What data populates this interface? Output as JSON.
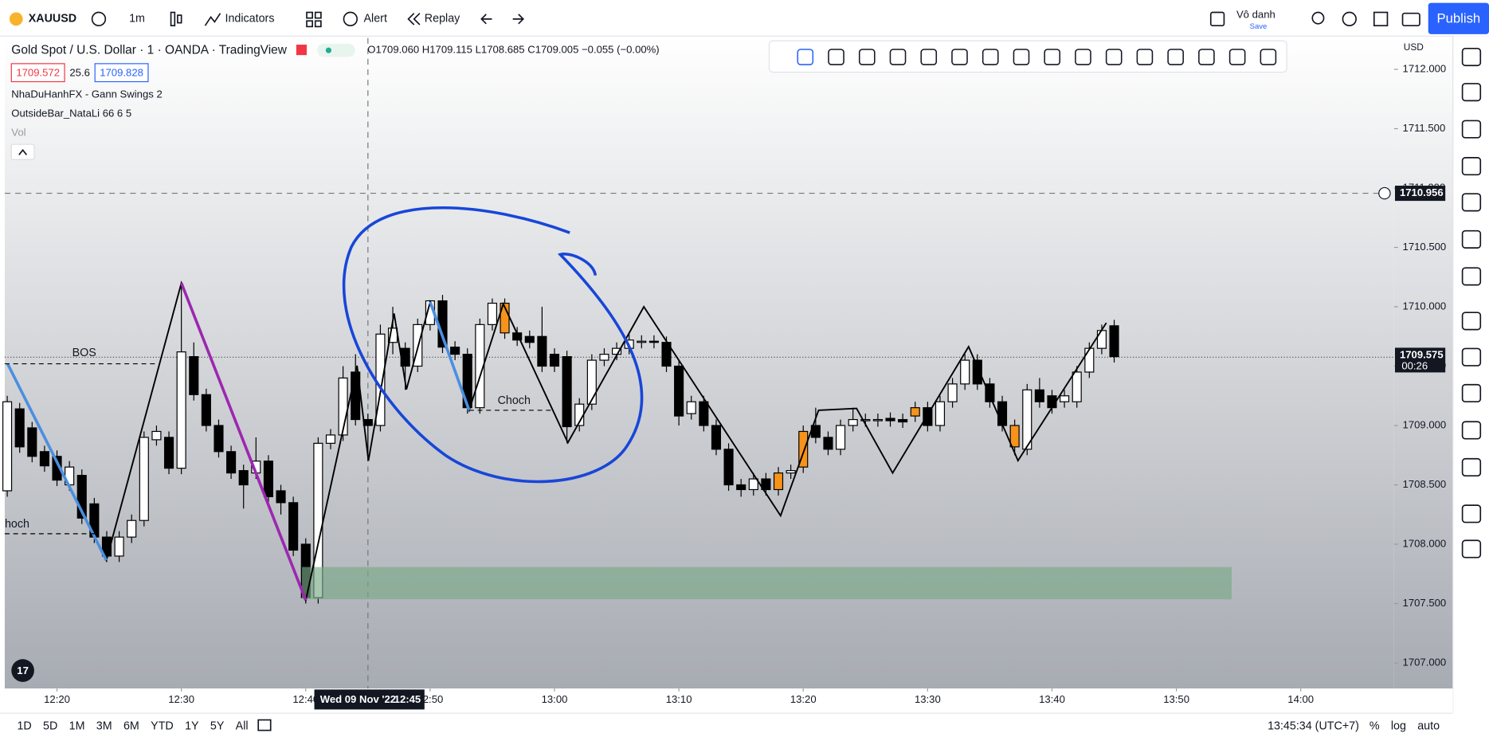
{
  "top_bar": {
    "symbol": "XAUUSD",
    "interval": "1m",
    "indicators": "Indicators",
    "alert": "Alert",
    "replay": "Replay",
    "layout_name": "Vô danh",
    "save": "Save",
    "publish": "Publish"
  },
  "legend": {
    "title": "Gold Spot / U.S. Dollar · 1 · OANDA · TradingView",
    "ohlc": "O1709.060 H1709.115 L1708.685 C1709.005 −0.055 (−0.00%)",
    "bid": "1709.572",
    "spread": "25.6",
    "ask": "1709.828",
    "indicators": [
      "NhaDuHanhFX - Gann Swings 2",
      "OutsideBar_NataLi 66 6 5",
      "Vol"
    ]
  },
  "chart_data": {
    "type": "candlestick",
    "currency": "USD",
    "x": [
      736,
      737,
      738,
      739,
      740,
      741,
      742,
      743,
      744,
      745,
      746,
      747,
      748,
      749,
      750,
      751,
      752,
      753,
      754,
      755,
      756,
      757,
      758,
      759,
      760,
      761,
      762,
      763,
      764,
      765,
      766,
      767,
      768,
      769,
      770,
      771,
      772,
      773,
      774,
      775,
      776,
      777,
      778,
      779,
      780,
      781,
      782,
      783,
      784,
      785,
      786,
      787,
      788,
      789,
      790,
      791,
      792,
      793,
      794,
      795,
      796,
      797,
      798,
      799,
      800,
      801,
      802,
      803,
      804,
      805,
      806,
      807,
      808,
      809,
      810,
      811,
      812,
      813,
      814,
      815,
      816,
      817,
      818,
      819,
      820,
      821,
      822,
      823,
      824,
      825
    ],
    "open": [
      1708.45,
      1709.14,
      1708.98,
      1708.78,
      1708.74,
      1708.5,
      1708.58,
      1708.34,
      1708.06,
      1707.9,
      1708.06,
      1708.2,
      1708.88,
      1708.9,
      1708.64,
      1709.58,
      1709.26,
      1709.0,
      1708.78,
      1708.62,
      1708.6,
      1708.7,
      1708.45,
      1708.35,
      1708.0,
      1707.55,
      1708.85,
      1708.92,
      1709.45,
      1709.05,
      1709.0,
      1709.7,
      1709.65,
      1709.5,
      1709.85,
      1710.05,
      1709.66,
      1709.6,
      1709.15,
      1709.85,
      1710.03,
      1709.78,
      1709.75,
      1709.75,
      1709.6,
      1709.58,
      1709.0,
      1709.18,
      1709.55,
      1709.6,
      1709.65,
      1709.7,
      1709.71,
      1709.7,
      1709.5,
      1709.1,
      1709.2,
      1709.0,
      1708.8,
      1708.5,
      1708.46,
      1708.55,
      1708.46,
      1708.6,
      1708.65,
      1709.0,
      1708.9,
      1708.8,
      1709.0,
      1709.04,
      1709.04,
      1709.06,
      1709.05,
      1709.08,
      1709.15,
      1709.0,
      1709.2,
      1709.35,
      1709.55,
      1709.35,
      1709.2,
      1709.0,
      1708.8,
      1709.3,
      1709.25,
      1709.2,
      1709.2,
      1709.45,
      1709.65,
      1709.84
    ],
    "high": [
      1709.25,
      1709.19,
      1709.03,
      1708.83,
      1708.79,
      1708.7,
      1708.63,
      1708.39,
      1708.11,
      1708.11,
      1708.25,
      1708.95,
      1709.0,
      1708.95,
      1710.2,
      1709.7,
      1709.31,
      1709.05,
      1708.83,
      1708.67,
      1708.9,
      1708.75,
      1708.5,
      1708.4,
      1708.05,
      1708.9,
      1708.97,
      1709.5,
      1709.6,
      1709.1,
      1709.85,
      1710.0,
      1709.7,
      1709.9,
      1710.05,
      1710.1,
      1709.71,
      1709.65,
      1709.9,
      1710.07,
      1710.07,
      1709.83,
      1709.8,
      1710.0,
      1709.65,
      1709.63,
      1709.23,
      1709.6,
      1709.65,
      1709.7,
      1709.77,
      1709.76,
      1709.76,
      1709.75,
      1709.55,
      1709.25,
      1709.25,
      1709.05,
      1708.85,
      1708.55,
      1708.6,
      1708.6,
      1708.65,
      1708.67,
      1709.0,
      1709.15,
      1708.95,
      1709.05,
      1709.15,
      1709.1,
      1709.1,
      1709.11,
      1709.1,
      1709.2,
      1709.2,
      1709.25,
      1709.4,
      1709.6,
      1709.6,
      1709.4,
      1709.25,
      1709.05,
      1709.35,
      1709.4,
      1709.3,
      1709.3,
      1709.5,
      1709.7,
      1709.85,
      1709.89
    ],
    "low": [
      1708.4,
      1708.77,
      1708.69,
      1708.61,
      1708.49,
      1708.45,
      1708.17,
      1708.01,
      1707.85,
      1707.85,
      1708.01,
      1708.15,
      1708.83,
      1708.59,
      1708.59,
      1709.21,
      1708.95,
      1708.73,
      1708.55,
      1708.3,
      1708.55,
      1708.35,
      1708.25,
      1707.9,
      1707.5,
      1707.5,
      1708.8,
      1708.87,
      1709.0,
      1708.7,
      1708.95,
      1709.6,
      1709.3,
      1709.45,
      1709.8,
      1709.61,
      1709.55,
      1709.1,
      1709.1,
      1709.8,
      1709.73,
      1709.67,
      1709.65,
      1709.45,
      1709.45,
      1708.85,
      1708.95,
      1709.13,
      1709.5,
      1709.55,
      1709.6,
      1709.65,
      1709.65,
      1709.45,
      1709.0,
      1709.05,
      1708.95,
      1708.75,
      1708.45,
      1708.4,
      1708.41,
      1708.41,
      1708.41,
      1708.55,
      1708.6,
      1708.85,
      1708.75,
      1708.75,
      1708.95,
      1708.99,
      1708.99,
      1708.99,
      1708.98,
      1709.03,
      1708.95,
      1708.95,
      1709.15,
      1709.3,
      1709.3,
      1709.15,
      1708.95,
      1708.75,
      1708.75,
      1709.15,
      1709.1,
      1709.15,
      1709.15,
      1709.4,
      1709.6,
      1709.53
    ],
    "close": [
      1709.2,
      1708.82,
      1708.74,
      1708.66,
      1708.54,
      1708.65,
      1708.22,
      1708.06,
      1707.9,
      1708.06,
      1708.2,
      1708.9,
      1708.95,
      1708.64,
      1709.62,
      1709.26,
      1709.0,
      1708.78,
      1708.6,
      1708.5,
      1708.7,
      1708.4,
      1708.35,
      1707.95,
      1707.55,
      1708.85,
      1708.92,
      1709.4,
      1709.05,
      1709.0,
      1709.77,
      1709.82,
      1709.5,
      1709.85,
      1710.05,
      1709.66,
      1709.6,
      1709.15,
      1709.85,
      1710.03,
      1709.78,
      1709.72,
      1709.7,
      1709.5,
      1709.5,
      1708.99,
      1709.18,
      1709.55,
      1709.6,
      1709.65,
      1709.72,
      1709.71,
      1709.7,
      1709.5,
      1709.08,
      1709.2,
      1709.0,
      1708.8,
      1708.5,
      1708.46,
      1708.55,
      1708.46,
      1708.6,
      1708.62,
      1708.95,
      1708.9,
      1708.8,
      1709.0,
      1709.05,
      1709.05,
      1709.05,
      1709.04,
      1709.03,
      1709.15,
      1709.0,
      1709.2,
      1709.35,
      1709.55,
      1709.35,
      1709.2,
      1709.0,
      1708.82,
      1709.3,
      1709.2,
      1709.15,
      1709.25,
      1709.45,
      1709.65,
      1709.8,
      1709.58
    ],
    "colors": [
      "#ffffff",
      "#000000",
      "#000000",
      "#000000",
      "#000000",
      "#ffffff",
      "#000000",
      "#000000",
      "#000000",
      "#ffffff",
      "#ffffff",
      "#ffffff",
      "#ffffff",
      "#000000",
      "#ffffff",
      "#000000",
      "#000000",
      "#000000",
      "#000000",
      "#000000",
      "#ffffff",
      "#000000",
      "#000000",
      "#000000",
      "#000000",
      "#ffffff",
      "#ffffff",
      "#ffffff",
      "#000000",
      "#000000",
      "#ffffff",
      "#ffffff",
      "#000000",
      "#ffffff",
      "#ffffff",
      "#000000",
      "#000000",
      "#000000",
      "#ffffff",
      "#ffffff",
      "#f7931a",
      "#000000",
      "#000000",
      "#000000",
      "#000000",
      "#000000",
      "#ffffff",
      "#ffffff",
      "#ffffff",
      "#ffffff",
      "#ffffff",
      "#ffffff",
      "#000000",
      "#000000",
      "#000000",
      "#ffffff",
      "#000000",
      "#000000",
      "#000000",
      "#000000",
      "#ffffff",
      "#000000",
      "#f7931a",
      "#ffffff",
      "#f7931a",
      "#000000",
      "#000000",
      "#ffffff",
      "#ffffff",
      "#ffffff",
      "#ffffff",
      "#000000",
      "#000000",
      "#f7931a",
      "#000000",
      "#ffffff",
      "#ffffff",
      "#ffffff",
      "#000000",
      "#000000",
      "#000000",
      "#f7931a",
      "#ffffff",
      "#000000",
      "#000000",
      "#ffffff",
      "#ffffff",
      "#ffffff",
      "#ffffff",
      "#000000"
    ],
    "xlim": [
      735.8,
      847.5
    ],
    "xticks": [
      {
        "value": 740,
        "label": "12:20"
      },
      {
        "value": 750,
        "label": "12:30"
      },
      {
        "value": 760,
        "label": "12:40"
      },
      {
        "value": 770,
        "label": "12:50"
      },
      {
        "value": 780,
        "label": "13:00"
      },
      {
        "value": 790,
        "label": "13:10"
      },
      {
        "value": 800,
        "label": "13:20"
      },
      {
        "value": 810,
        "label": "13:30"
      },
      {
        "value": 820,
        "label": "13:40"
      },
      {
        "value": 830,
        "label": "13:50"
      },
      {
        "value": 840,
        "label": "14:00"
      }
    ],
    "ylim": [
      1706.784,
      1712.264
    ],
    "yticks": [
      {
        "value": 1707,
        "label": "1707.000"
      },
      {
        "value": 1707.5,
        "label": "1707.500"
      },
      {
        "value": 1708,
        "label": "1708.000"
      },
      {
        "value": 1708.5,
        "label": "1708.500"
      },
      {
        "value": 1709,
        "label": "1709.000"
      },
      {
        "value": 1709.5,
        "label": "1709.500"
      },
      {
        "value": 1710,
        "label": "1710.000"
      },
      {
        "value": 1710.5,
        "label": "1710.500"
      },
      {
        "value": 1711,
        "label": "1711.000"
      },
      {
        "value": 1711.5,
        "label": "1711.500"
      },
      {
        "value": 1712,
        "label": "1712.000"
      }
    ],
    "last_price": 1709.575,
    "countdown": "00:26",
    "crosshair_price": 1710.956,
    "crosshair_x": {
      "value": 765,
      "label": "12:45"
    },
    "crosshair_date": "Wed 09 Nov '22",
    "annotations": {
      "bos": "BOS",
      "choch": "Choch",
      "hoch": "hoch"
    }
  },
  "bottom_bar": {
    "ranges": [
      "1D",
      "5D",
      "1M",
      "3M",
      "6M",
      "YTD",
      "1Y",
      "5Y",
      "All"
    ],
    "clock": "13:45:34 (UTC+7)",
    "options": [
      "%",
      "log",
      "auto"
    ]
  }
}
